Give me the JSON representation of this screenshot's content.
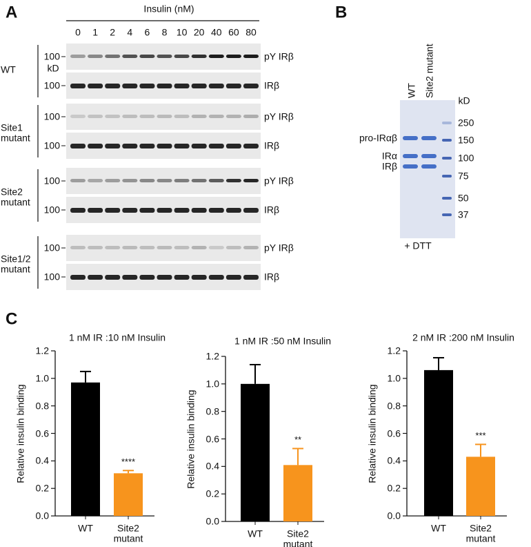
{
  "panel_a": {
    "label": "A",
    "axis_title": "Insulin (nM)",
    "concentrations": [
      0,
      1,
      2,
      4,
      6,
      8,
      10,
      20,
      40,
      60,
      80
    ],
    "marker": 100,
    "marker_unit": "kD",
    "row_labels": [
      "pY IRβ",
      "IRβ"
    ],
    "groups": [
      "WT",
      "Site1 mutant",
      "Site2 mutant",
      "Site1/2 mutant"
    ]
  },
  "panel_b": {
    "label": "B",
    "lanes": [
      "WT",
      "Site2 mutant"
    ],
    "unit": "kD",
    "markers": [
      250,
      150,
      100,
      75,
      50,
      37
    ],
    "band_labels": [
      "pro-IRαβ",
      "IRα",
      "IRβ"
    ],
    "condition": "+ DTT"
  },
  "panel_c_label": "C",
  "chart_data": [
    {
      "type": "bar",
      "title": "1 nM IR :10 nM Insulin",
      "y_label": "Relative insulin binding",
      "categories": [
        "WT",
        "Site2 mutant"
      ],
      "values": [
        0.97,
        0.31
      ],
      "errors": [
        0.08,
        0.02
      ],
      "colors": [
        "#000000",
        "#f7941d"
      ],
      "significance": "****",
      "ylim": [
        0,
        1.2
      ],
      "yticks": [
        {
          "value": 0,
          "label": "0.0"
        },
        0.2,
        0.4,
        0.6,
        0.8,
        {
          "value": 1,
          "label": "1.0"
        },
        1.2
      ]
    },
    {
      "type": "bar",
      "title": "1 nM IR :50 nM Insulin",
      "y_label": "Relative insulin binding",
      "categories": [
        "WT",
        "Site2 mutant"
      ],
      "values": [
        1.0,
        0.41
      ],
      "errors": [
        0.14,
        0.12
      ],
      "colors": [
        "#000000",
        "#f7941d"
      ],
      "significance": "**",
      "ylim": [
        0,
        1.2
      ],
      "yticks": [
        {
          "value": 0,
          "label": "0.0"
        },
        0.2,
        0.4,
        0.6,
        0.8,
        {
          "value": 1,
          "label": "1.0"
        },
        1.2
      ]
    },
    {
      "type": "bar",
      "title": "2 nM IR :200 nM Insulin",
      "y_label": "Relative insulin binding",
      "categories": [
        "WT",
        "Site2 mutant"
      ],
      "values": [
        1.06,
        0.43
      ],
      "errors": [
        0.09,
        0.09
      ],
      "colors": [
        "#000000",
        "#f7941d"
      ],
      "significance": "***",
      "ylim": [
        0,
        1.2
      ],
      "yticks": [
        {
          "value": 0,
          "label": "0.0"
        },
        0.2,
        0.4,
        0.6,
        0.8,
        {
          "value": 1,
          "label": "1.0"
        },
        1.2
      ]
    }
  ]
}
